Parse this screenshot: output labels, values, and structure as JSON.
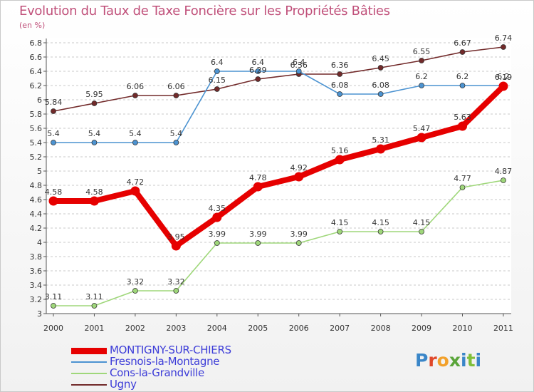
{
  "page": {
    "title": "Evolution du Taux de Taxe Foncière sur les Propriétés Bâties",
    "unit": "(en %)"
  },
  "logo": {
    "text": "Proxiti",
    "letter_colors": [
      "#3a86c8",
      "#e0482a",
      "#f2a12b",
      "#5aa53a",
      "#3a86c8",
      "#7fbf3a",
      "#3a86c8"
    ]
  },
  "chart_data": {
    "type": "line",
    "title": "Evolution du Taux de Taxe Foncière sur les Propriétés Bâties",
    "ylabel": "(en %)",
    "xlabel": "",
    "x": [
      "2000",
      "2001",
      "2002",
      "2003",
      "2004",
      "2005",
      "2006",
      "2007",
      "2008",
      "2009",
      "2010",
      "2011"
    ],
    "ylim": [
      3,
      6.8
    ],
    "yticks": [
      "3",
      "3.2",
      "3.4",
      "3.6",
      "3.8",
      "4",
      "4.2",
      "4.4",
      "4.6",
      "4.8",
      "5",
      "5.2",
      "5.4",
      "5.6",
      "5.8",
      "6",
      "6.2",
      "6.4",
      "6.6",
      "6.8"
    ],
    "grid": "horizontal dashed",
    "legend_position": "bottom-left",
    "series": [
      {
        "name": "Ugny",
        "color": "#722a2a",
        "values": [
          5.84,
          5.95,
          6.06,
          6.06,
          6.15,
          6.29,
          6.36,
          6.36,
          6.45,
          6.55,
          6.67,
          6.74
        ],
        "labels": [
          "5.84",
          "5.95",
          "6.06",
          "6.06",
          "6.15",
          "6.29",
          "6.36",
          "6.36",
          "6.45",
          "6.55",
          "6.67",
          "6.74"
        ]
      },
      {
        "name": "Fresnois-la-Montagne",
        "color": "#4c93d1",
        "values": [
          5.4,
          5.4,
          5.4,
          5.4,
          6.4,
          6.4,
          6.4,
          6.08,
          6.08,
          6.2,
          6.2,
          6.2
        ],
        "labels": [
          "5.4",
          "5.4",
          "5.4",
          "5.4",
          "6.4",
          "6.4",
          "6.4",
          "6.08",
          "6.08",
          "6.2",
          "6.2",
          "6.2"
        ]
      },
      {
        "name": "Cons-la-Grandville",
        "color": "#9fd77a",
        "values": [
          3.11,
          3.11,
          3.32,
          3.32,
          3.99,
          3.99,
          3.99,
          4.15,
          4.15,
          4.15,
          4.77,
          4.87
        ],
        "labels": [
          "3.11",
          "3.11",
          "3.32",
          "3.32",
          "3.99",
          "3.99",
          "3.99",
          "4.15",
          "4.15",
          "4.15",
          "4.77",
          "4.87"
        ]
      },
      {
        "name": "MONTIGNY-SUR-CHIERS",
        "color": "#e60000",
        "values": [
          4.58,
          4.58,
          4.72,
          3.95,
          4.35,
          4.78,
          4.92,
          5.16,
          5.31,
          5.47,
          5.63,
          6.19
        ],
        "labels": [
          "4.58",
          "4.58",
          "4.72",
          "3.95",
          "4.35",
          "4.78",
          "4.92",
          "5.16",
          "5.31",
          "5.47",
          "5.63",
          "6.19"
        ]
      }
    ],
    "legend": [
      {
        "name": "MONTIGNY-SUR-CHIERS",
        "color": "#e60000"
      },
      {
        "name": "Fresnois-la-Montagne",
        "color": "#4c93d1"
      },
      {
        "name": "Cons-la-Grandville",
        "color": "#9fd77a"
      },
      {
        "name": "Ugny",
        "color": "#722a2a"
      }
    ]
  }
}
